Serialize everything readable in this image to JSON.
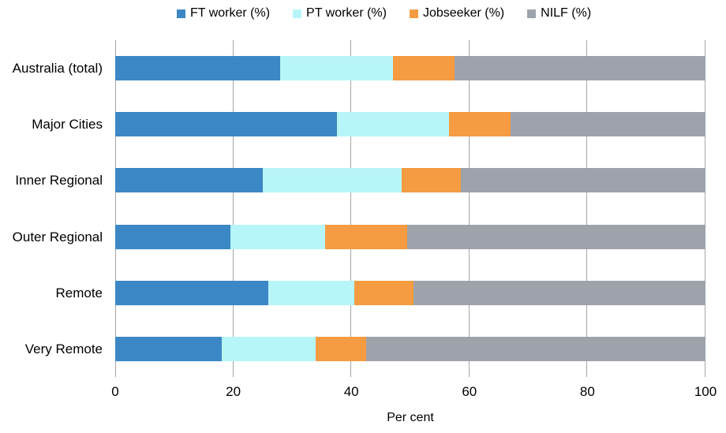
{
  "chart_data": {
    "type": "bar",
    "orientation": "horizontal",
    "stacked": true,
    "title": "",
    "xlabel": "Per cent",
    "ylabel": "",
    "xlim": [
      0,
      100
    ],
    "x_ticks": [
      "0",
      "20",
      "40",
      "60",
      "80",
      "100"
    ],
    "grid": "vertical",
    "legend_position": "top",
    "categories": [
      "Australia (total)",
      "Major Cities",
      "Inner Regional",
      "Outer Regional",
      "Remote",
      "Very Remote"
    ],
    "series": [
      {
        "name": "FT worker (%)",
        "color": "#3C87C5",
        "values": [
          28.0,
          37.5,
          25.0,
          19.5,
          26.0,
          18.0
        ]
      },
      {
        "name": "PT worker (%)",
        "color": "#B7F5F8",
        "values": [
          19.0,
          19.0,
          23.5,
          16.0,
          14.5,
          16.0
        ]
      },
      {
        "name": "Jobseeker (%)",
        "color": "#F59B42",
        "values": [
          10.5,
          10.5,
          10.0,
          14.0,
          10.0,
          8.5
        ]
      },
      {
        "name": "NILF (%)",
        "color": "#9EA3AB",
        "values": [
          42.5,
          33.0,
          41.5,
          50.5,
          49.5,
          57.5
        ]
      }
    ]
  },
  "colors": {
    "gridline": "#A6A6A6",
    "text": "#000000",
    "background": "#FFFFFF"
  }
}
